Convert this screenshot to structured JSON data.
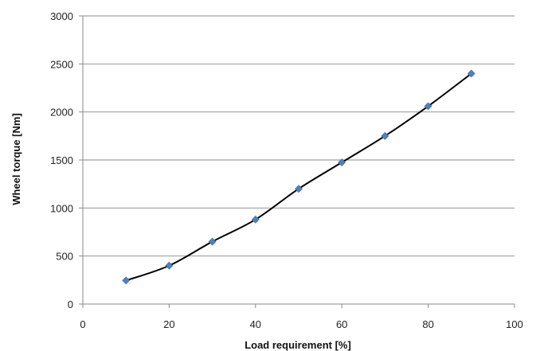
{
  "chart_data": {
    "type": "line",
    "title": "",
    "xlabel": "Load requirement [%]",
    "ylabel": "Wheel torque [Nm]",
    "xlim": [
      0,
      100
    ],
    "ylim": [
      0,
      3000
    ],
    "x_ticks": [
      0,
      20,
      40,
      60,
      80,
      100
    ],
    "y_ticks": [
      0,
      500,
      1000,
      1500,
      2000,
      2500,
      3000
    ],
    "grid": "horizontal",
    "legend": "none",
    "series": [
      {
        "x": [
          10,
          20,
          30,
          40,
          50,
          60,
          70,
          80,
          90
        ],
        "values": [
          245,
          400,
          650,
          880,
          1200,
          1475,
          1750,
          2060,
          2400
        ],
        "line_color": "#000000",
        "marker": "diamond",
        "marker_color": "#4F81BD"
      }
    ]
  }
}
